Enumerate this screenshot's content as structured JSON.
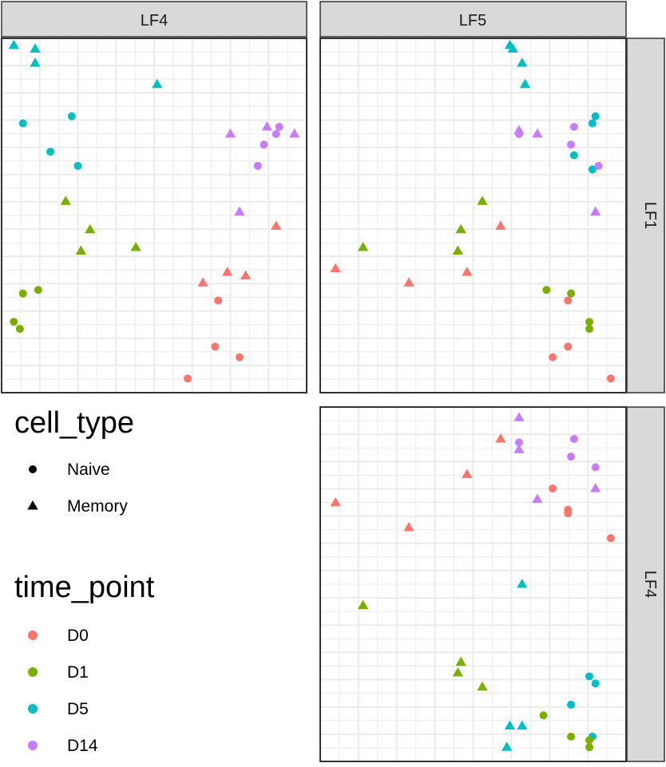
{
  "colors": {
    "D0": "#F8766D",
    "D1": "#7CAE00",
    "D5": "#00BFC4",
    "D14": "#C77CFF",
    "strip_bg": "#D9D9D9",
    "grid": "#EBEBEB",
    "panel_border": "#333333"
  },
  "legend": {
    "shape_title": "cell_type",
    "shape_items": [
      {
        "label": "Naive",
        "shape": "circle"
      },
      {
        "label": "Memory",
        "shape": "triangle"
      }
    ],
    "color_title": "time_point",
    "color_items": [
      {
        "label": "D0",
        "color_key": "D0"
      },
      {
        "label": "D1",
        "color_key": "D1"
      },
      {
        "label": "D5",
        "color_key": "D5"
      },
      {
        "label": "D14",
        "color_key": "D14"
      }
    ]
  },
  "chart_data": {
    "type": "scatter",
    "facet_cols": [
      "LF4",
      "LF5"
    ],
    "facet_rows": [
      "LF1",
      "LF4"
    ],
    "axis_ranges": {
      "x": [
        0,
        100
      ],
      "y": [
        0,
        100
      ]
    },
    "grid": true,
    "panels": [
      {
        "col": "LF4",
        "row": "LF1",
        "points": [
          {
            "x": 4,
            "y": 98,
            "tp": "D5",
            "ct": "Memory"
          },
          {
            "x": 11,
            "y": 97,
            "tp": "D5",
            "ct": "Memory"
          },
          {
            "x": 11,
            "y": 93,
            "tp": "D5",
            "ct": "Memory"
          },
          {
            "x": 51,
            "y": 87,
            "tp": "D5",
            "ct": "Memory"
          },
          {
            "x": 7,
            "y": 76,
            "tp": "D5",
            "ct": "Naive"
          },
          {
            "x": 23,
            "y": 78,
            "tp": "D5",
            "ct": "Naive"
          },
          {
            "x": 16,
            "y": 68,
            "tp": "D5",
            "ct": "Naive"
          },
          {
            "x": 25,
            "y": 64,
            "tp": "D5",
            "ct": "Naive"
          },
          {
            "x": 75,
            "y": 73,
            "tp": "D14",
            "ct": "Memory"
          },
          {
            "x": 87,
            "y": 75,
            "tp": "D14",
            "ct": "Memory"
          },
          {
            "x": 96,
            "y": 73,
            "tp": "D14",
            "ct": "Memory"
          },
          {
            "x": 78,
            "y": 51,
            "tp": "D14",
            "ct": "Memory"
          },
          {
            "x": 91,
            "y": 75,
            "tp": "D14",
            "ct": "Naive"
          },
          {
            "x": 90,
            "y": 73,
            "tp": "D14",
            "ct": "Naive"
          },
          {
            "x": 86,
            "y": 70,
            "tp": "D14",
            "ct": "Naive"
          },
          {
            "x": 84,
            "y": 64,
            "tp": "D14",
            "ct": "Naive"
          },
          {
            "x": 21,
            "y": 54,
            "tp": "D1",
            "ct": "Memory"
          },
          {
            "x": 29,
            "y": 46,
            "tp": "D1",
            "ct": "Memory"
          },
          {
            "x": 26,
            "y": 40,
            "tp": "D1",
            "ct": "Memory"
          },
          {
            "x": 44,
            "y": 41,
            "tp": "D1",
            "ct": "Memory"
          },
          {
            "x": 7,
            "y": 28,
            "tp": "D1",
            "ct": "Naive"
          },
          {
            "x": 12,
            "y": 29,
            "tp": "D1",
            "ct": "Naive"
          },
          {
            "x": 4,
            "y": 20,
            "tp": "D1",
            "ct": "Naive"
          },
          {
            "x": 6,
            "y": 18,
            "tp": "D1",
            "ct": "Naive"
          },
          {
            "x": 90,
            "y": 47,
            "tp": "D0",
            "ct": "Memory"
          },
          {
            "x": 74,
            "y": 34,
            "tp": "D0",
            "ct": "Memory"
          },
          {
            "x": 80,
            "y": 33,
            "tp": "D0",
            "ct": "Memory"
          },
          {
            "x": 66,
            "y": 31,
            "tp": "D0",
            "ct": "Memory"
          },
          {
            "x": 71,
            "y": 26,
            "tp": "D0",
            "ct": "Naive"
          },
          {
            "x": 70,
            "y": 13,
            "tp": "D0",
            "ct": "Naive"
          },
          {
            "x": 78,
            "y": 10,
            "tp": "D0",
            "ct": "Naive"
          },
          {
            "x": 61,
            "y": 4,
            "tp": "D0",
            "ct": "Naive"
          }
        ]
      },
      {
        "col": "LF5",
        "row": "LF1",
        "points": [
          {
            "x": 62,
            "y": 98,
            "tp": "D5",
            "ct": "Memory"
          },
          {
            "x": 63,
            "y": 97,
            "tp": "D5",
            "ct": "Memory"
          },
          {
            "x": 66,
            "y": 93,
            "tp": "D5",
            "ct": "Memory"
          },
          {
            "x": 67,
            "y": 87,
            "tp": "D5",
            "ct": "Memory"
          },
          {
            "x": 90,
            "y": 78,
            "tp": "D5",
            "ct": "Naive"
          },
          {
            "x": 89,
            "y": 76,
            "tp": "D5",
            "ct": "Naive"
          },
          {
            "x": 83,
            "y": 67,
            "tp": "D5",
            "ct": "Naive"
          },
          {
            "x": 89,
            "y": 63,
            "tp": "D5",
            "ct": "Naive"
          },
          {
            "x": 65,
            "y": 74,
            "tp": "D14",
            "ct": "Memory"
          },
          {
            "x": 71,
            "y": 73,
            "tp": "D14",
            "ct": "Memory"
          },
          {
            "x": 90,
            "y": 51,
            "tp": "D14",
            "ct": "Memory"
          },
          {
            "x": 83,
            "y": 75,
            "tp": "D14",
            "ct": "Naive"
          },
          {
            "x": 65,
            "y": 73,
            "tp": "D14",
            "ct": "Naive"
          },
          {
            "x": 82,
            "y": 70,
            "tp": "D14",
            "ct": "Naive"
          },
          {
            "x": 91,
            "y": 64,
            "tp": "D14",
            "ct": "Naive"
          },
          {
            "x": 53,
            "y": 54,
            "tp": "D1",
            "ct": "Memory"
          },
          {
            "x": 46,
            "y": 46,
            "tp": "D1",
            "ct": "Memory"
          },
          {
            "x": 45,
            "y": 40,
            "tp": "D1",
            "ct": "Memory"
          },
          {
            "x": 14,
            "y": 41,
            "tp": "D1",
            "ct": "Memory"
          },
          {
            "x": 74,
            "y": 29,
            "tp": "D1",
            "ct": "Naive"
          },
          {
            "x": 82,
            "y": 28,
            "tp": "D1",
            "ct": "Naive"
          },
          {
            "x": 88,
            "y": 20,
            "tp": "D1",
            "ct": "Naive"
          },
          {
            "x": 88,
            "y": 18,
            "tp": "D1",
            "ct": "Naive"
          },
          {
            "x": 59,
            "y": 47,
            "tp": "D0",
            "ct": "Memory"
          },
          {
            "x": 5,
            "y": 35,
            "tp": "D0",
            "ct": "Memory"
          },
          {
            "x": 29,
            "y": 31,
            "tp": "D0",
            "ct": "Memory"
          },
          {
            "x": 48,
            "y": 34,
            "tp": "D0",
            "ct": "Memory"
          },
          {
            "x": 81,
            "y": 26,
            "tp": "D0",
            "ct": "Naive"
          },
          {
            "x": 81,
            "y": 13,
            "tp": "D0",
            "ct": "Naive"
          },
          {
            "x": 76,
            "y": 10,
            "tp": "D0",
            "ct": "Naive"
          },
          {
            "x": 95,
            "y": 4,
            "tp": "D0",
            "ct": "Naive"
          }
        ]
      },
      {
        "col": "LF5",
        "row": "LF4",
        "points": [
          {
            "x": 65,
            "y": 97,
            "tp": "D14",
            "ct": "Memory"
          },
          {
            "x": 65,
            "y": 90,
            "tp": "D14",
            "ct": "Naive"
          },
          {
            "x": 65,
            "y": 88,
            "tp": "D14",
            "ct": "Memory"
          },
          {
            "x": 83,
            "y": 91,
            "tp": "D14",
            "ct": "Naive"
          },
          {
            "x": 82,
            "y": 86,
            "tp": "D14",
            "ct": "Naive"
          },
          {
            "x": 90,
            "y": 83,
            "tp": "D14",
            "ct": "Naive"
          },
          {
            "x": 90,
            "y": 77,
            "tp": "D14",
            "ct": "Memory"
          },
          {
            "x": 71,
            "y": 74,
            "tp": "D14",
            "ct": "Memory"
          },
          {
            "x": 59,
            "y": 91,
            "tp": "D0",
            "ct": "Memory"
          },
          {
            "x": 48,
            "y": 81,
            "tp": "D0",
            "ct": "Memory"
          },
          {
            "x": 5,
            "y": 73,
            "tp": "D0",
            "ct": "Memory"
          },
          {
            "x": 29,
            "y": 66,
            "tp": "D0",
            "ct": "Memory"
          },
          {
            "x": 76,
            "y": 77,
            "tp": "D0",
            "ct": "Naive"
          },
          {
            "x": 81,
            "y": 71,
            "tp": "D0",
            "ct": "Naive"
          },
          {
            "x": 81,
            "y": 70,
            "tp": "D0",
            "ct": "Naive"
          },
          {
            "x": 95,
            "y": 63,
            "tp": "D0",
            "ct": "Naive"
          },
          {
            "x": 66,
            "y": 50,
            "tp": "D5",
            "ct": "Memory"
          },
          {
            "x": 88,
            "y": 24,
            "tp": "D5",
            "ct": "Naive"
          },
          {
            "x": 90,
            "y": 22,
            "tp": "D5",
            "ct": "Naive"
          },
          {
            "x": 82,
            "y": 16,
            "tp": "D5",
            "ct": "Naive"
          },
          {
            "x": 62,
            "y": 10,
            "tp": "D5",
            "ct": "Memory"
          },
          {
            "x": 66,
            "y": 10,
            "tp": "D5",
            "ct": "Memory"
          },
          {
            "x": 61,
            "y": 4,
            "tp": "D5",
            "ct": "Memory"
          },
          {
            "x": 89,
            "y": 7,
            "tp": "D5",
            "ct": "Naive"
          },
          {
            "x": 14,
            "y": 44,
            "tp": "D1",
            "ct": "Memory"
          },
          {
            "x": 46,
            "y": 28,
            "tp": "D1",
            "ct": "Memory"
          },
          {
            "x": 45,
            "y": 25,
            "tp": "D1",
            "ct": "Memory"
          },
          {
            "x": 53,
            "y": 21,
            "tp": "D1",
            "ct": "Memory"
          },
          {
            "x": 73,
            "y": 13,
            "tp": "D1",
            "ct": "Naive"
          },
          {
            "x": 82,
            "y": 7,
            "tp": "D1",
            "ct": "Naive"
          },
          {
            "x": 88,
            "y": 6,
            "tp": "D1",
            "ct": "Naive"
          },
          {
            "x": 88,
            "y": 4,
            "tp": "D1",
            "ct": "Naive"
          }
        ]
      }
    ]
  }
}
